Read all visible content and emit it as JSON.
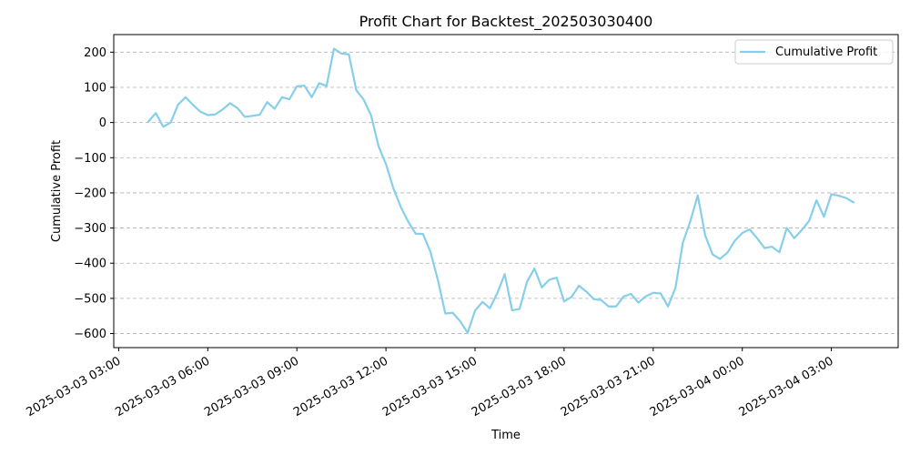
{
  "chart_data": {
    "type": "line",
    "title": "Profit Chart for Backtest_202503030400",
    "xlabel": "Time",
    "ylabel": "Cumulative Profit",
    "xlim": [
      "2025-03-03 02:50",
      "2025-03-04 05:15"
    ],
    "ylim": [
      -640,
      250
    ],
    "y_ticks": [
      200,
      100,
      0,
      -100,
      -200,
      -300,
      -400,
      -500,
      -600
    ],
    "y_tick_labels": [
      "200",
      "100",
      "0",
      "−100",
      "−200",
      "−300",
      "−400",
      "−500",
      "−600"
    ],
    "x_ticks": [
      "2025-03-03 03:00",
      "2025-03-03 06:00",
      "2025-03-03 09:00",
      "2025-03-03 12:00",
      "2025-03-03 15:00",
      "2025-03-03 18:00",
      "2025-03-03 21:00",
      "2025-03-04 00:00",
      "2025-03-04 03:00"
    ],
    "x_tick_labels": [
      "2025-03-03 03:00",
      "2025-03-03 06:00",
      "2025-03-03 09:00",
      "2025-03-03 12:00",
      "2025-03-03 15:00",
      "2025-03-03 18:00",
      "2025-03-03 21:00",
      "2025-03-04 00:00",
      "2025-03-04 03:00"
    ],
    "grid": "y-dashed",
    "legend_position": "top-right",
    "series": [
      {
        "name": "Cumulative Profit",
        "color": "#87ceeb",
        "x": [
          "2025-03-03 04:00",
          "2025-03-03 04:15",
          "2025-03-03 04:30",
          "2025-03-03 04:45",
          "2025-03-03 05:00",
          "2025-03-03 05:15",
          "2025-03-03 05:30",
          "2025-03-03 05:45",
          "2025-03-03 06:00",
          "2025-03-03 06:15",
          "2025-03-03 06:30",
          "2025-03-03 06:45",
          "2025-03-03 07:00",
          "2025-03-03 07:15",
          "2025-03-03 07:30",
          "2025-03-03 07:45",
          "2025-03-03 08:00",
          "2025-03-03 08:15",
          "2025-03-03 08:30",
          "2025-03-03 08:45",
          "2025-03-03 09:00",
          "2025-03-03 09:15",
          "2025-03-03 09:30",
          "2025-03-03 09:45",
          "2025-03-03 10:00",
          "2025-03-03 10:15",
          "2025-03-03 10:30",
          "2025-03-03 10:45",
          "2025-03-03 11:00",
          "2025-03-03 11:15",
          "2025-03-03 11:30",
          "2025-03-03 11:45",
          "2025-03-03 12:00",
          "2025-03-03 12:15",
          "2025-03-03 12:30",
          "2025-03-03 12:45",
          "2025-03-03 13:00",
          "2025-03-03 13:15",
          "2025-03-03 13:30",
          "2025-03-03 13:45",
          "2025-03-03 14:00",
          "2025-03-03 14:15",
          "2025-03-03 14:30",
          "2025-03-03 14:45",
          "2025-03-03 15:00",
          "2025-03-03 15:15",
          "2025-03-03 15:30",
          "2025-03-03 15:45",
          "2025-03-03 16:00",
          "2025-03-03 16:15",
          "2025-03-03 16:30",
          "2025-03-03 16:45",
          "2025-03-03 17:00",
          "2025-03-03 17:15",
          "2025-03-03 17:30",
          "2025-03-03 17:45",
          "2025-03-03 18:00",
          "2025-03-03 18:15",
          "2025-03-03 18:30",
          "2025-03-03 18:45",
          "2025-03-03 19:00",
          "2025-03-03 19:15",
          "2025-03-03 19:30",
          "2025-03-03 19:45",
          "2025-03-03 20:00",
          "2025-03-03 20:15",
          "2025-03-03 20:30",
          "2025-03-03 20:45",
          "2025-03-03 21:00",
          "2025-03-03 21:15",
          "2025-03-03 21:30",
          "2025-03-03 21:45",
          "2025-03-03 22:00",
          "2025-03-03 22:15",
          "2025-03-03 22:30",
          "2025-03-03 22:45",
          "2025-03-03 23:00",
          "2025-03-03 23:15",
          "2025-03-03 23:30",
          "2025-03-03 23:45",
          "2025-03-04 00:00",
          "2025-03-04 00:15",
          "2025-03-04 00:30",
          "2025-03-04 00:45",
          "2025-03-04 01:00",
          "2025-03-04 01:15",
          "2025-03-04 01:30",
          "2025-03-04 01:45",
          "2025-03-04 02:00",
          "2025-03-04 02:15",
          "2025-03-04 02:30",
          "2025-03-04 02:45",
          "2025-03-04 03:00",
          "2025-03-04 03:15",
          "2025-03-04 03:30",
          "2025-03-04 03:45"
        ],
        "values": [
          3,
          27,
          -12,
          0,
          51,
          72,
          50,
          31,
          21,
          23,
          37,
          55,
          41,
          16,
          19,
          22,
          58,
          39,
          72,
          66,
          103,
          105,
          72,
          112,
          104,
          210,
          196,
          194,
          92,
          65,
          20,
          -67,
          -118,
          -187,
          -240,
          -282,
          -316,
          -317,
          -368,
          -448,
          -543,
          -541,
          -565,
          -598,
          -535,
          -510,
          -528,
          -485,
          -431,
          -534,
          -530,
          -453,
          -415,
          -469,
          -447,
          -441,
          -509,
          -496,
          -464,
          -481,
          -502,
          -505,
          -523,
          -523,
          -495,
          -487,
          -512,
          -494,
          -484,
          -486,
          -523,
          -470,
          -341,
          -281,
          -207,
          -321,
          -375,
          -388,
          -370,
          -336,
          -314,
          -304,
          -329,
          -357,
          -353,
          -369,
          -300,
          -329,
          -306,
          -280,
          -221,
          -268,
          -204,
          -208,
          -215,
          -227
        ]
      }
    ]
  }
}
